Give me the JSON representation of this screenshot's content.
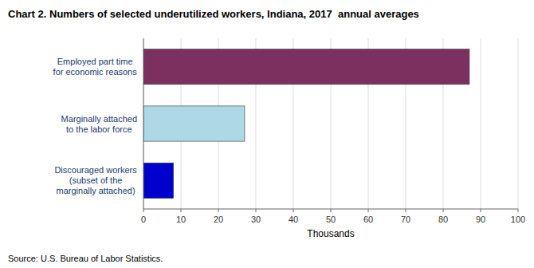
{
  "chart_data": {
    "type": "bar",
    "orientation": "horizontal",
    "title": "Chart 2. Numbers of selected underutilized workers, Indiana, 2017  annual averages",
    "categories": [
      "Discouraged workers\n(subset of the\nmarginally attached)",
      "Marginally attached\nto the labor force",
      "Employed part time\nfor economic reasons"
    ],
    "values": [
      8,
      27,
      87
    ],
    "colors": [
      "#0000cc",
      "#add8e6",
      "#7b3060"
    ],
    "xlabel": "Thousands",
    "xlim": [
      0,
      100
    ],
    "xticks": [
      0,
      10,
      20,
      30,
      40,
      50,
      60,
      70,
      80,
      90,
      100
    ],
    "grid": true,
    "source": "Source: U.S. Bureau of Labor Statistics."
  }
}
